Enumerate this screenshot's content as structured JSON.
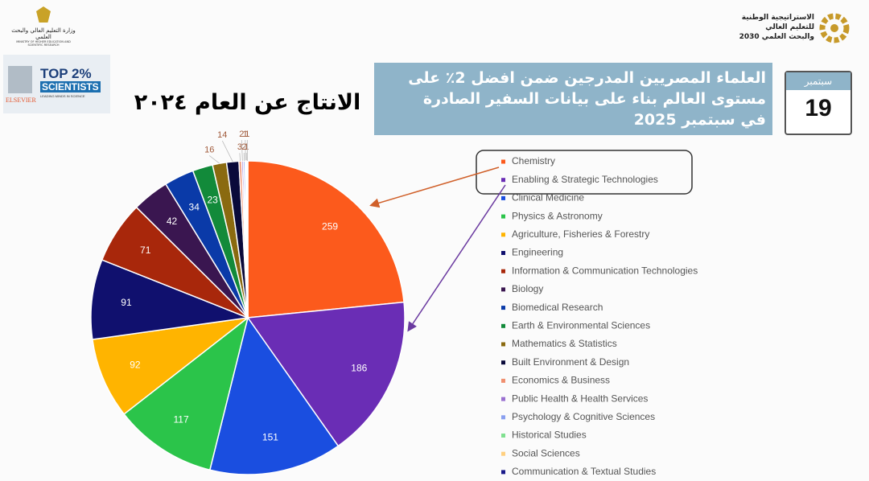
{
  "header": {
    "strategy_line1": "الاستراتيجية الوطنية",
    "strategy_line2": "للتعليم العالي",
    "strategy_line3": "والبحث العلمي 2030",
    "ministry": "وزارة التعليم العالي والبحث العلمي",
    "ministry_en": "MINISTRY OF HIGHER EDUCATION AND SCIENTIFIC RESEARCH"
  },
  "badge": {
    "top": "TOP 2%",
    "scientists": "SCIENTISTS",
    "tagline": "LEADING MINDS IN SCIENCE",
    "publisher": "ELSEVIER"
  },
  "banner": {
    "line1": "العلماء المصريين المدرجين ضمن افضل 2٪ على",
    "line2": "مستوى العالم بناء على بيانات السفير الصادرة",
    "line3": "في سبتمبر 2025"
  },
  "calendar": {
    "month": "سبتمبر",
    "day": "19"
  },
  "chart_data": {
    "type": "pie",
    "title": "الانتاج عن العام ٢٠٢٤",
    "categories": [
      "Chemistry",
      "Enabling & Strategic Technologies",
      "Clinical Medicine",
      "Physics & Astronomy",
      "Agriculture, Fisheries & Forestry",
      "Engineering",
      "Information & Communication Technologies",
      "Biology",
      "Biomedical Research",
      "Earth & Environmental Sciences",
      "Mathematics & Statistics",
      "Built Environment & Design",
      "Economics & Business",
      "Public Health & Health Services",
      "Psychology & Cognitive Sciences",
      "Historical Studies",
      "Social Sciences",
      "Communication & Textual Studies"
    ],
    "values": [
      259,
      186,
      151,
      117,
      92,
      91,
      71,
      42,
      34,
      23,
      16,
      14,
      3,
      2,
      2,
      1,
      1,
      1
    ],
    "colors": [
      "#fc5a1c",
      "#6a2db5",
      "#1a4ee0",
      "#2bc44a",
      "#ffb400",
      "#10106e",
      "#a8270b",
      "#3a1650",
      "#0a3aa8",
      "#128a3a",
      "#8a6a10",
      "#0a0a3a",
      "#f09070",
      "#9a70d0",
      "#8aa0f0",
      "#80e090",
      "#ffd080",
      "#1a1a8a"
    ],
    "legend": "right"
  }
}
